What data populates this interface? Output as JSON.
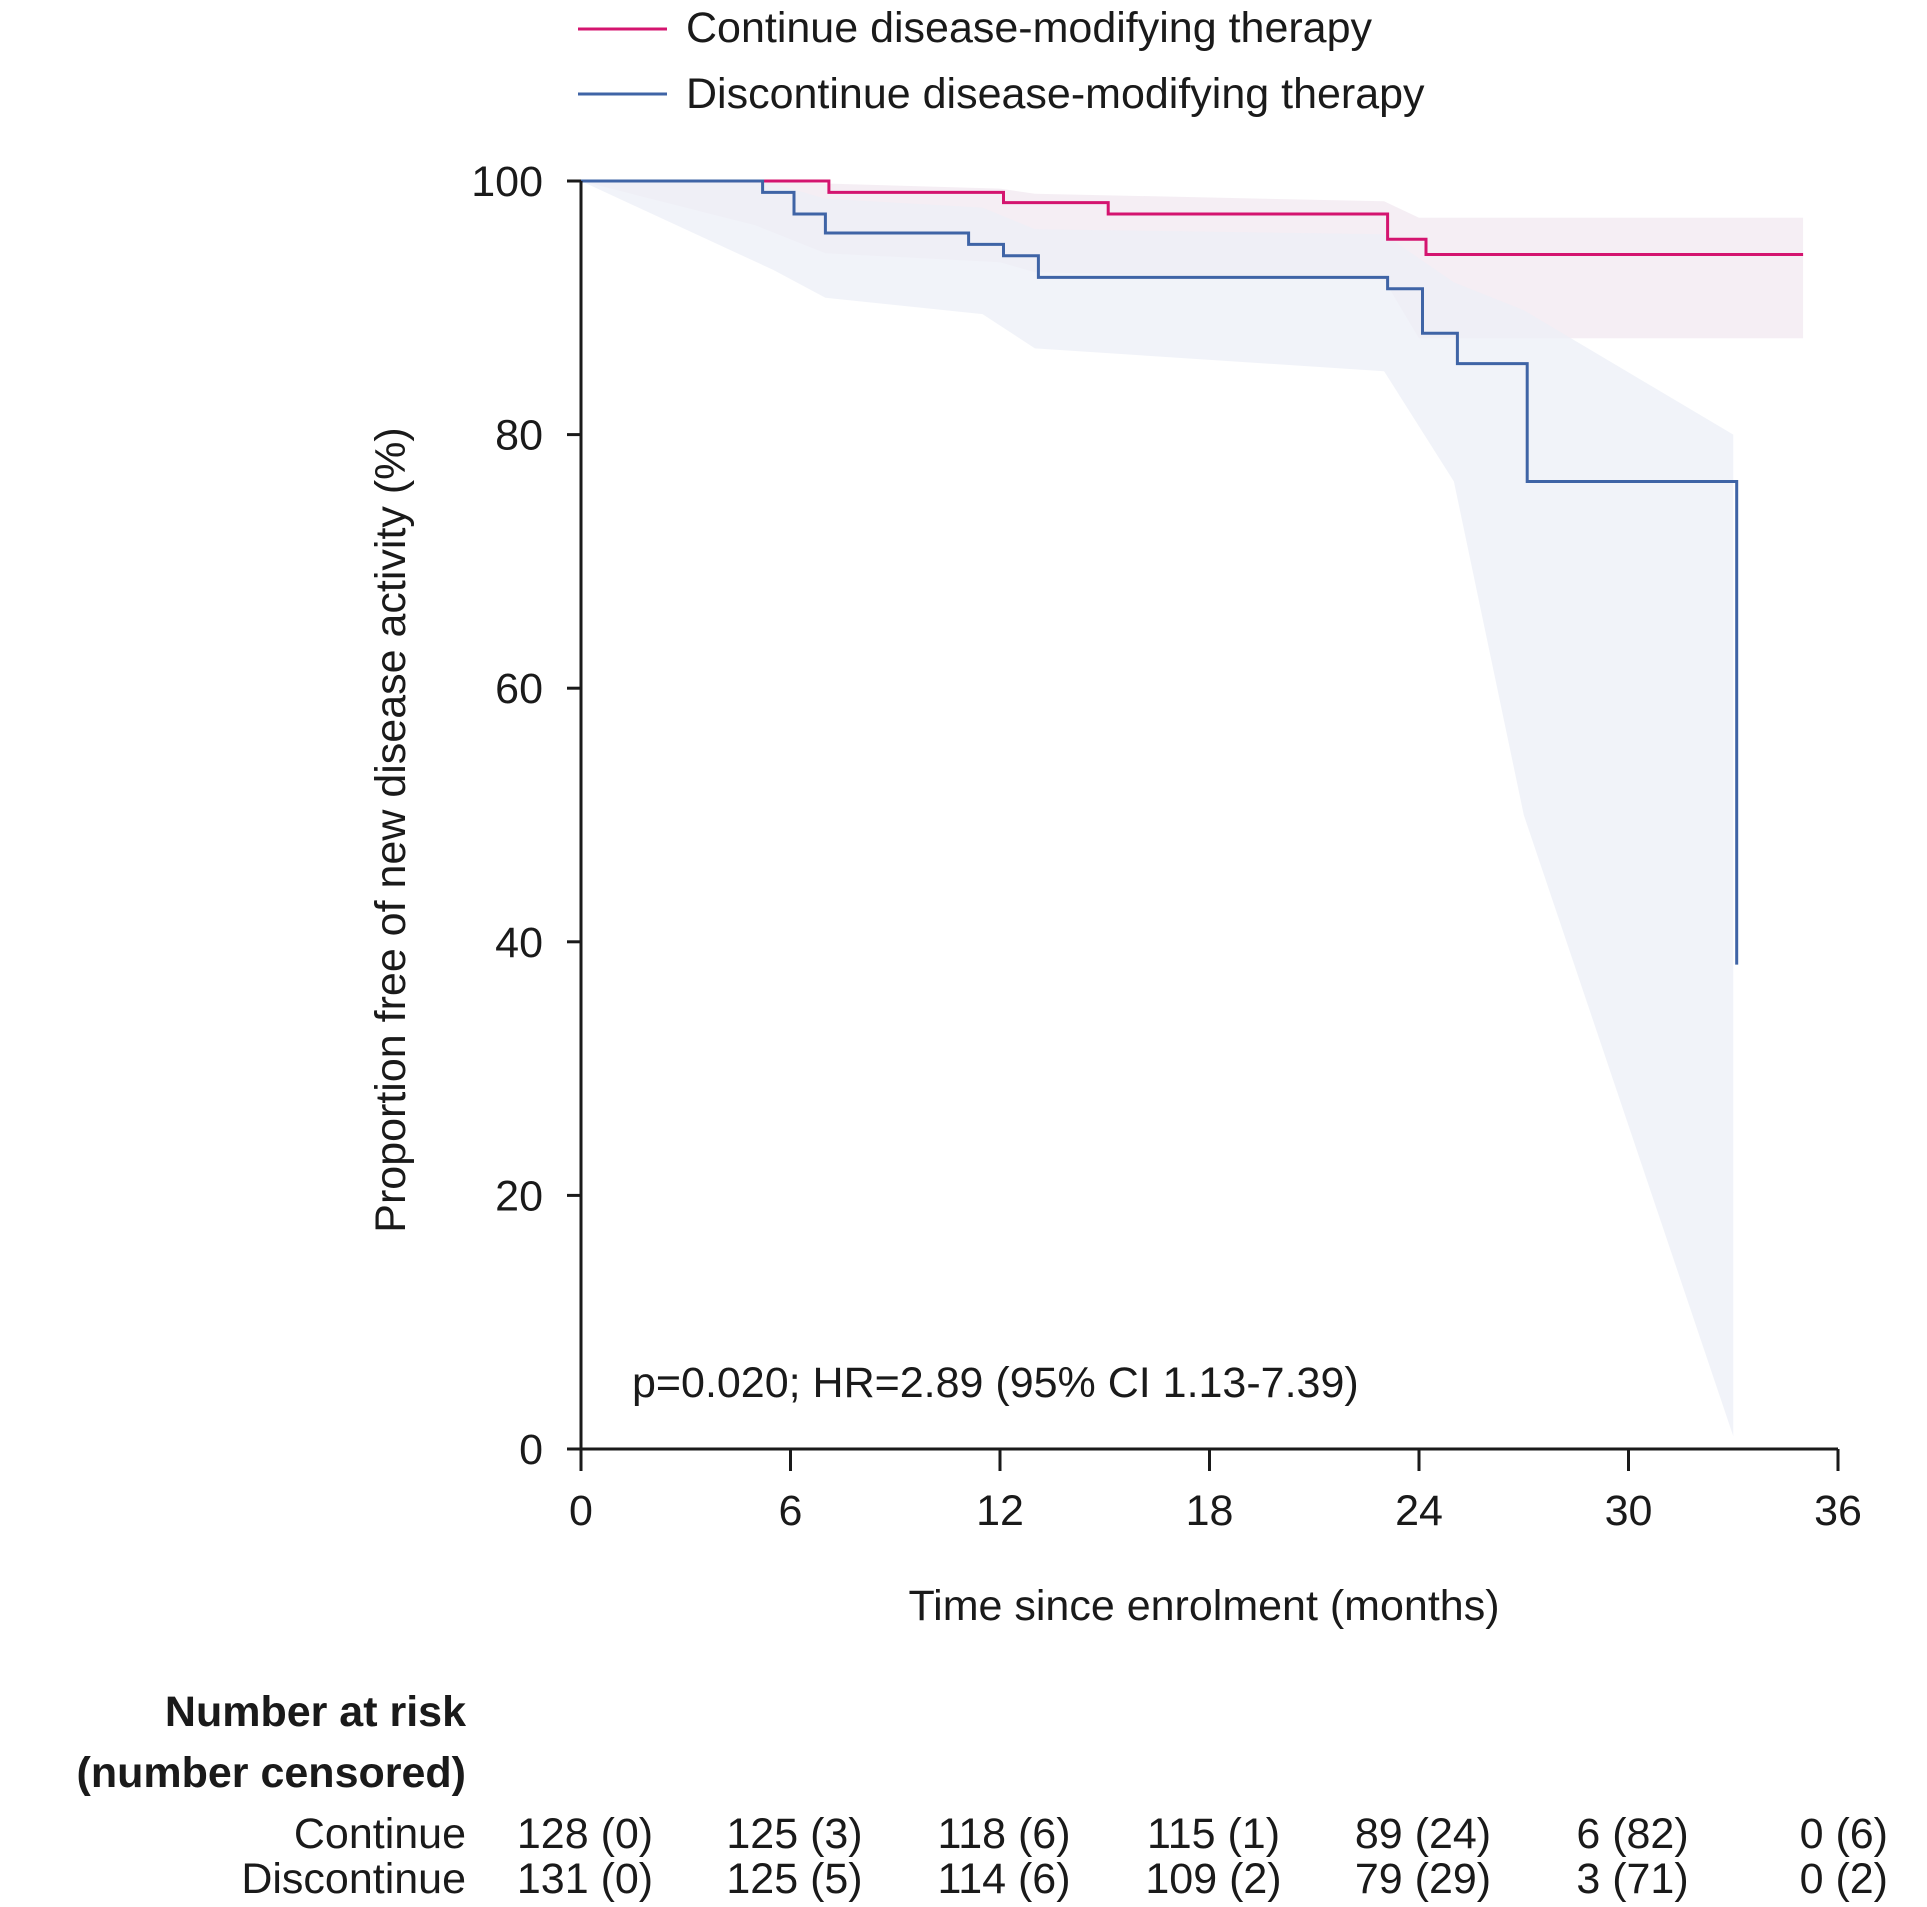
{
  "chart_data": {
    "type": "line",
    "step": true,
    "xlabel": "Time since enrolment (months)",
    "ylabel": "Proportion free of new disease activity (%)",
    "xlim": [
      0,
      36
    ],
    "ylim": [
      0,
      100
    ],
    "xticks": [
      0,
      6,
      12,
      18,
      24,
      30,
      36
    ],
    "yticks": [
      0,
      20,
      40,
      60,
      80,
      100
    ],
    "grid": false,
    "legend_position": "top",
    "annotation": "p=0.020; HR=2.89 (95% CI 1.13-7.39)",
    "series": [
      {
        "name": "Continue disease-modifying therapy",
        "color": "#d4146f",
        "band_color": "#f2e8f0",
        "x": [
          0,
          5.2,
          7.1,
          12.1,
          15.1,
          23.1,
          24.2,
          35
        ],
        "y": [
          100,
          100,
          99.1,
          98.3,
          97.4,
          95.4,
          94.2,
          94.2
        ],
        "ci_x": [
          0,
          5,
          7,
          12,
          13,
          23,
          24,
          35
        ],
        "ci_lower": [
          100,
          96.5,
          94.3,
          93.6,
          92.8,
          92.2,
          87.6,
          87.6
        ],
        "ci_upper": [
          100,
          100,
          99.8,
          99.4,
          99.0,
          98.4,
          97.1,
          97.1
        ]
      },
      {
        "name": "Discontinue disease-modifying therapy",
        "color": "#3f64a6",
        "band_color": "#eceff7",
        "x": [
          0,
          5.2,
          6.1,
          7.0,
          11.1,
          12.1,
          13.1,
          23.1,
          24.1,
          25.1,
          27.1,
          33.1
        ],
        "y": [
          100,
          99.1,
          97.4,
          95.9,
          95.0,
          94.1,
          92.4,
          91.5,
          88.0,
          85.6,
          76.3,
          38.2
        ],
        "ci_x": [
          0,
          5.5,
          7,
          11.5,
          13,
          23,
          25,
          27,
          33
        ],
        "ci_lower": [
          100,
          93.0,
          90.8,
          89.5,
          86.8,
          85.0,
          76.3,
          50.0,
          1.0
        ],
        "ci_upper": [
          100,
          99.8,
          98.6,
          97.9,
          96.2,
          95.8,
          92.0,
          89.8,
          80.0
        ]
      }
    ],
    "risk_table": {
      "title_line1": "Number at risk",
      "title_line2": "(number censored)",
      "times": [
        0,
        6,
        12,
        18,
        24,
        30,
        36
      ],
      "rows": [
        {
          "label": "Continue",
          "values": [
            "128 (0)",
            "125 (3)",
            "118 (6)",
            "115 (1)",
            "89 (24)",
            "6 (82)",
            "0 (6)"
          ]
        },
        {
          "label": "Discontinue",
          "values": [
            "131 (0)",
            "125 (5)",
            "114 (6)",
            "109 (2)",
            "79 (29)",
            "3 (71)",
            "0 (2)"
          ]
        }
      ]
    }
  }
}
